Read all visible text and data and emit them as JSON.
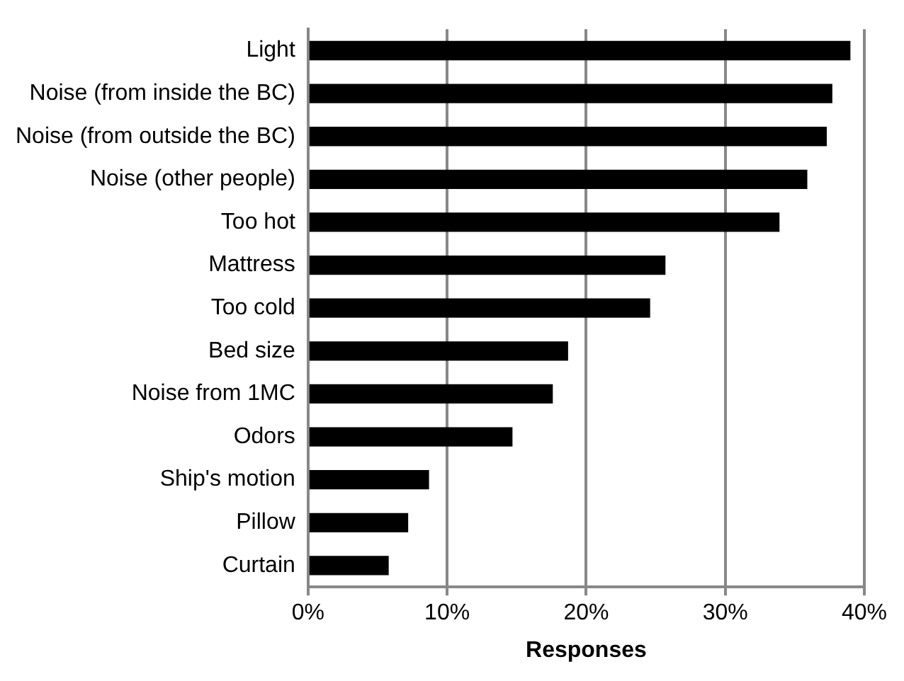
{
  "chart_data": {
    "type": "bar",
    "orientation": "horizontal",
    "xlabel": "Responses",
    "categories": [
      "Light",
      "Noise (from inside the BC)",
      "Noise (from outside the BC)",
      "Noise (other people)",
      "Too hot",
      "Mattress",
      "Too cold",
      "Bed size",
      "Noise from 1MC",
      "Odors",
      "Ship's motion",
      "Pillow",
      "Curtain"
    ],
    "values": [
      39.0,
      37.7,
      37.3,
      35.9,
      33.9,
      25.7,
      24.6,
      18.7,
      17.6,
      14.7,
      8.7,
      7.2,
      5.8
    ],
    "color": "#000000",
    "xlim": [
      0,
      40
    ],
    "xticks": [
      {
        "value": 0,
        "label": "0%"
      },
      {
        "value": 10,
        "label": "10%"
      },
      {
        "value": 20,
        "label": "20%"
      },
      {
        "value": 30,
        "label": "30%"
      },
      {
        "value": 40,
        "label": "40%"
      }
    ],
    "grid": "x",
    "legend": false
  }
}
